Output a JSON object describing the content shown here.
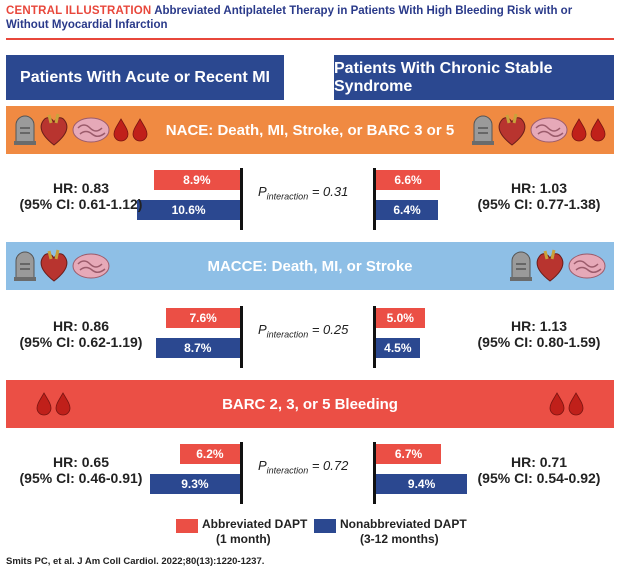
{
  "header": {
    "label": "CENTRAL ILLUSTRATION",
    "title": "Abbreviated Antiplatelet Therapy in Patients With High Bleeding Risk with or Without Myocardial Infarction"
  },
  "columns": {
    "left": "Patients With Acute or Recent MI",
    "right": "Patients With Chronic Stable Syndrome"
  },
  "colors": {
    "abbreviated": "#eb4f45",
    "nonabbreviated": "#2b4890",
    "nace_band": "#f08a42",
    "macce_band": "#8ebfe6",
    "bleeding_band": "#eb4f45"
  },
  "chart_data": [
    {
      "type": "bar",
      "title": "NACE: Death, MI, Stroke, or BARC 3 or 5",
      "icons": [
        "tombstone-icon",
        "heart-icon",
        "brain-icon",
        "blood-drop-icon"
      ],
      "left": {
        "hr": "HR: 0.83",
        "ci": "(95% CI: 0.61-1.12)",
        "series": [
          {
            "name": "Abbreviated DAPT",
            "value": 8.9,
            "label": "8.9%"
          },
          {
            "name": "Nonabbreviated DAPT",
            "value": 10.6,
            "label": "10.6%"
          }
        ]
      },
      "p_interaction": {
        "prefix": "P",
        "sub": "interaction",
        "value": "= 0.31"
      },
      "right": {
        "hr": "HR: 1.03",
        "ci": "(95% CI: 0.77-1.38)",
        "series": [
          {
            "name": "Abbreviated DAPT",
            "value": 6.6,
            "label": "6.6%"
          },
          {
            "name": "Nonabbreviated DAPT",
            "value": 6.4,
            "label": "6.4%"
          }
        ]
      }
    },
    {
      "type": "bar",
      "title": "MACCE: Death, MI, or Stroke",
      "icons": [
        "tombstone-icon",
        "heart-icon",
        "brain-icon"
      ],
      "left": {
        "hr": "HR: 0.86",
        "ci": "(95% CI: 0.62-1.19)",
        "series": [
          {
            "name": "Abbreviated DAPT",
            "value": 7.6,
            "label": "7.6%"
          },
          {
            "name": "Nonabbreviated DAPT",
            "value": 8.7,
            "label": "8.7%"
          }
        ]
      },
      "p_interaction": {
        "prefix": "P",
        "sub": "interaction",
        "value": "= 0.25"
      },
      "right": {
        "hr": "HR: 1.13",
        "ci": "(95% CI: 0.80-1.59)",
        "series": [
          {
            "name": "Abbreviated DAPT",
            "value": 5.0,
            "label": "5.0%"
          },
          {
            "name": "Nonabbreviated DAPT",
            "value": 4.5,
            "label": "4.5%"
          }
        ]
      }
    },
    {
      "type": "bar",
      "title": "BARC 2, 3, or 5 Bleeding",
      "icons": [
        "blood-drop-icon"
      ],
      "left": {
        "hr": "HR: 0.65",
        "ci": "(95% CI: 0.46-0.91)",
        "series": [
          {
            "name": "Abbreviated DAPT",
            "value": 6.2,
            "label": "6.2%"
          },
          {
            "name": "Nonabbreviated DAPT",
            "value": 9.3,
            "label": "9.3%"
          }
        ]
      },
      "p_interaction": {
        "prefix": "P",
        "sub": "interaction",
        "value": "= 0.72"
      },
      "right": {
        "hr": "HR: 0.71",
        "ci": "(95% CI: 0.54-0.92)",
        "series": [
          {
            "name": "Abbreviated DAPT",
            "value": 6.7,
            "label": "6.7%"
          },
          {
            "name": "Nonabbreviated DAPT",
            "value": 9.4,
            "label": "9.4%"
          }
        ]
      }
    }
  ],
  "legend": {
    "abbreviated": {
      "line1": "Abbreviated DAPT",
      "line2": "(1 month)"
    },
    "nonabbreviated": {
      "line1": "Nonabbreviated DAPT",
      "line2": "(3-12 months)"
    }
  },
  "footer": "Smits PC, et al. J Am Coll Cardiol. 2022;80(13):1220-1237."
}
